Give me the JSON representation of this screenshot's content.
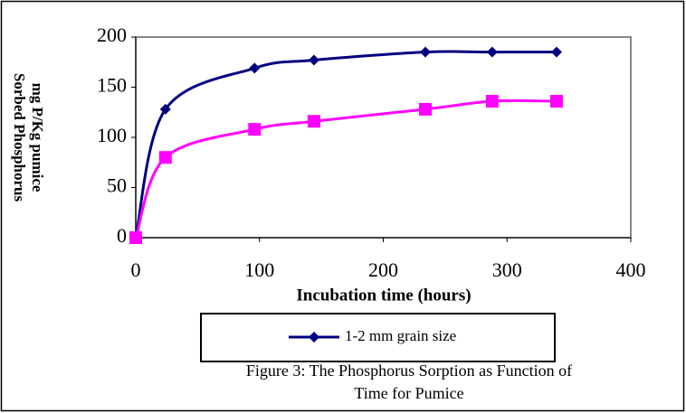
{
  "chart_data": {
    "type": "line",
    "x_label": "Incubation time (hours)",
    "y_label": [
      "Sorbed Phosphorus",
      "mg P/Kg pumice"
    ],
    "caption": [
      "Figure 3: The Phosphorus Sorption as Function of",
      "Time for Pumice"
    ],
    "x": [
      0,
      24,
      96,
      144,
      234,
      288,
      340
    ],
    "series": [
      {
        "name": "1-2 mm grain size",
        "color": "#000080",
        "marker": "diamond",
        "values": [
          0,
          128,
          169,
          177,
          185,
          185,
          185
        ]
      },
      {
        "color": "#ff00ff",
        "marker": "square",
        "values": [
          0,
          80,
          108,
          116,
          128,
          136,
          136
        ]
      }
    ],
    "xlim": [
      0,
      400
    ],
    "xticks": [
      0,
      100,
      200,
      300,
      400
    ],
    "ylim": [
      0,
      200
    ],
    "yticks": [
      0,
      50,
      100,
      150,
      200
    ]
  }
}
